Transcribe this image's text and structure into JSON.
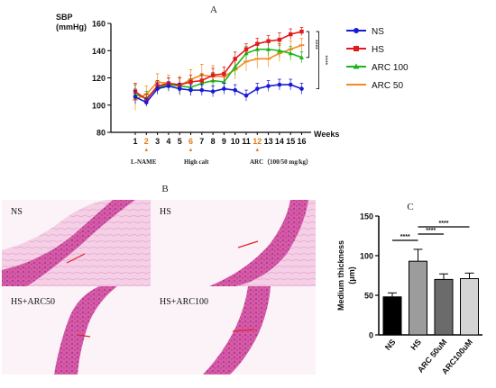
{
  "panels": {
    "a": "A",
    "b": "B",
    "c": "C"
  },
  "colors": {
    "NS": "#1a1ad6",
    "HS": "#e11b1b",
    "ARC 100": "#1cb51c",
    "ARC 50": "#f58a1f"
  },
  "treatment_labels": [
    "L-NAME",
    "High calt",
    "ARC（100/50 mg/kg）"
  ],
  "micrographs": [
    {
      "label": "NS"
    },
    {
      "label": "HS"
    },
    {
      "label": "HS+ARC50"
    },
    {
      "label": "HS+ARC100"
    }
  ],
  "chart_data": [
    {
      "type": "line",
      "ylabel": "SBP\n(mmHg)",
      "xlabel": "Weeks",
      "ylim": [
        80,
        160
      ],
      "yticks": [
        80,
        100,
        120,
        140,
        160
      ],
      "x": [
        1,
        2,
        3,
        4,
        5,
        6,
        7,
        8,
        9,
        10,
        11,
        12,
        13,
        14,
        15,
        16
      ],
      "highlighted_ticks": [
        2,
        6,
        12
      ],
      "legend_position": "right",
      "grid": false,
      "series": [
        {
          "name": "NS",
          "values": [
            106,
            102,
            112,
            114,
            112,
            111,
            111,
            110,
            112,
            111,
            107,
            112,
            114,
            115,
            115,
            112
          ],
          "errors": [
            5,
            3,
            4,
            3,
            4,
            4,
            4,
            4,
            4,
            4,
            4,
            4,
            4,
            4,
            4,
            4
          ]
        },
        {
          "name": "HS",
          "values": [
            110,
            104,
            114,
            116,
            115,
            117,
            118,
            122,
            123,
            134,
            141,
            145,
            147,
            148,
            152,
            154
          ],
          "errors": [
            6,
            4,
            4,
            4,
            5,
            5,
            5,
            5,
            5,
            5,
            4,
            4,
            4,
            5,
            4,
            3
          ]
        },
        {
          "name": "ARC 100",
          "values": [
            108,
            105,
            113,
            115,
            114,
            113,
            116,
            118,
            117,
            128,
            138,
            141,
            141,
            140,
            138,
            135
          ],
          "errors": [
            7,
            5,
            5,
            5,
            6,
            6,
            6,
            6,
            6,
            6,
            5,
            5,
            5,
            5,
            5,
            4
          ]
        },
        {
          "name": "ARC 50",
          "values": [
            104,
            108,
            117,
            116,
            114,
            119,
            122,
            121,
            121,
            126,
            132,
            134,
            134,
            138,
            141,
            144
          ],
          "errors": [
            8,
            6,
            6,
            6,
            7,
            7,
            8,
            8,
            7,
            7,
            7,
            7,
            6,
            6,
            6,
            5
          ]
        }
      ],
      "annotations": [
        "****",
        "****"
      ]
    },
    {
      "type": "bar",
      "ylabel": "Medium thickness\n(μm)",
      "ylim": [
        0,
        150
      ],
      "yticks": [
        0,
        50,
        100,
        150
      ],
      "categories": [
        "NS",
        "HS",
        "ARC 50uM",
        "ARC100uM"
      ],
      "values": [
        48,
        93,
        70,
        71
      ],
      "errors": [
        5,
        15,
        7,
        7
      ],
      "colors": [
        "#000000",
        "#9c9c9c",
        "#6b6b6b",
        "#d4d4d4"
      ],
      "significance": [
        {
          "from": 0,
          "to": 1,
          "label": "****"
        },
        {
          "from": 1,
          "to": 2,
          "label": "****"
        },
        {
          "from": 1,
          "to": 3,
          "label": "****"
        }
      ]
    }
  ]
}
